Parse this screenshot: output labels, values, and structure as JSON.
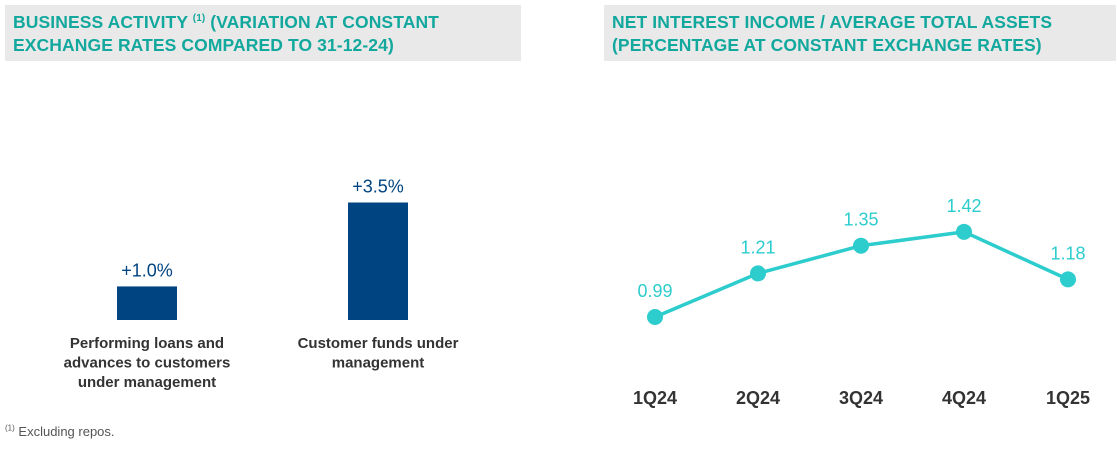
{
  "left_panel": {
    "title_line1_a": "BUSINESS ACTIVITY",
    "title_sup": "(1)",
    "title_line1_b": "(VARIATION AT CONSTANT",
    "title_line2": "EXCHANGE RATES COMPARED TO 31-12-24)"
  },
  "right_panel": {
    "title_line1": "NET INTEREST INCOME / AVERAGE TOTAL ASSETS",
    "title_line2": "(PERCENTAGE AT CONSTANT EXCHANGE RATES)"
  },
  "footnote": {
    "marker": "(1)",
    "text": "Excluding repos."
  },
  "chart_data": [
    {
      "type": "bar",
      "title": "BUSINESS ACTIVITY (1) (VARIATION AT CONSTANT EXCHANGE RATES COMPARED TO 31-12-24)",
      "categories": [
        [
          "Performing loans and",
          "advances to customers",
          "under management"
        ],
        [
          "Customer funds under",
          "management"
        ]
      ],
      "values": [
        1.0,
        3.5
      ],
      "labels": [
        "+1.0%",
        "+3.5%"
      ],
      "unit": "%",
      "ylim": [
        0,
        4
      ],
      "grid": false,
      "color": "#004481"
    },
    {
      "type": "line",
      "title": "NET INTEREST INCOME / AVERAGE TOTAL ASSETS (PERCENTAGE AT CONSTANT EXCHANGE RATES)",
      "x": [
        "1Q24",
        "2Q24",
        "3Q24",
        "4Q24",
        "1Q25"
      ],
      "values": [
        0.99,
        1.21,
        1.35,
        1.42,
        1.18
      ],
      "labels": [
        "0.99",
        "1.21",
        "1.35",
        "1.42",
        "1.18"
      ],
      "ylim": [
        0.8,
        1.6
      ],
      "grid": false,
      "color": "#2dcccd"
    }
  ],
  "colors": {
    "header_text": "#12a89d",
    "header_bg": "#e9e9e9",
    "bar": "#004481",
    "line": "#2dcccd",
    "text_dark": "#333333"
  }
}
